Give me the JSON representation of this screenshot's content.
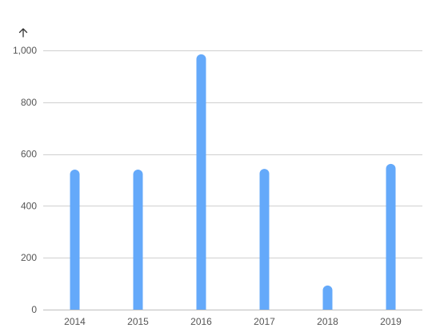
{
  "chart_data": {
    "type": "bar",
    "title": "",
    "xlabel": "",
    "ylabel": "",
    "categories": [
      "2014",
      "2015",
      "2016",
      "2017",
      "2018",
      "2019"
    ],
    "series": [
      {
        "values": [
          540,
          540,
          985,
          543,
          93,
          562
        ]
      }
    ],
    "ylim": [
      0,
      1000
    ],
    "yticks": [
      0,
      200,
      400,
      600,
      800,
      1000
    ],
    "ytick_labels": [
      "0",
      "200",
      "400",
      "600",
      "800",
      "1,000"
    ],
    "grid": true,
    "legend": "none",
    "bar_color": "#64a9fa",
    "y_axis_icon": "arrow-up-icon"
  }
}
